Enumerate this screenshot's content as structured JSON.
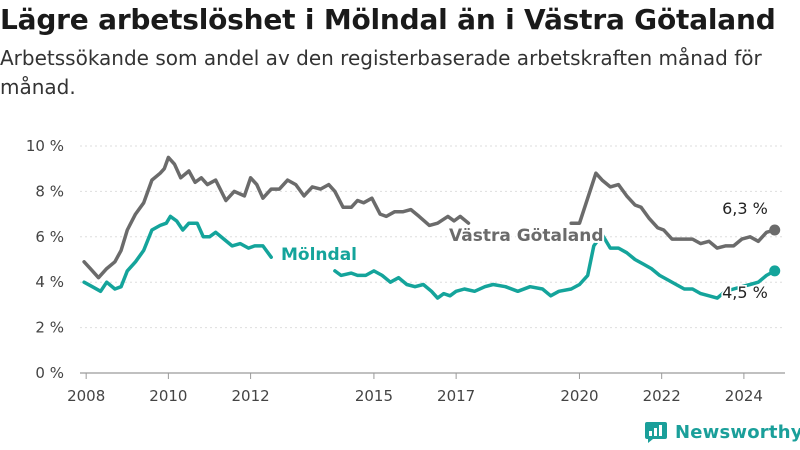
{
  "header": {
    "title": "Lägre arbetslöshet i Mölndal än i Västra Götaland",
    "subtitle": "Arbetssökande som andel av den registerbaserade arbetskraften månad för månad."
  },
  "brand": {
    "name": "Newsworthy",
    "icon": "newsworthy-logo-icon",
    "color": "#1a9f9a"
  },
  "chart_data": {
    "type": "line",
    "title": "Lägre arbetslöshet i Mölndal än i Västra Götaland",
    "subtitle": "Arbetssökande som andel av den registerbaserade arbetskraften månad för månad.",
    "xlabel": "",
    "ylabel": "",
    "ylim": [
      0,
      10
    ],
    "yticks": [
      0,
      2,
      4,
      6,
      8,
      10
    ],
    "ytick_labels": [
      "0 %",
      "2 %",
      "4 %",
      "6 %",
      "8 %",
      "10 %"
    ],
    "xlim": [
      2007.85,
      2025.0
    ],
    "xticks": [
      2008,
      2010,
      2012,
      2015,
      2017,
      2020,
      2022,
      2024
    ],
    "xtick_labels": [
      "2008",
      "2010",
      "2012",
      "2015",
      "2017",
      "2020",
      "2022",
      "2024"
    ],
    "grid": true,
    "series": [
      {
        "name": "Västra Götaland",
        "color": "#6b6b6b",
        "end_label": "6,3 %",
        "segments": [
          [
            [
              2007.95,
              4.9
            ],
            [
              2008.1,
              4.6
            ],
            [
              2008.3,
              4.2
            ],
            [
              2008.5,
              4.6
            ],
            [
              2008.7,
              4.9
            ],
            [
              2008.85,
              5.4
            ],
            [
              2009.0,
              6.3
            ],
            [
              2009.2,
              7.0
            ],
            [
              2009.4,
              7.5
            ],
            [
              2009.6,
              8.5
            ],
            [
              2009.8,
              8.8
            ],
            [
              2009.9,
              9.0
            ],
            [
              2010.0,
              9.5
            ],
            [
              2010.15,
              9.2
            ],
            [
              2010.3,
              8.6
            ],
            [
              2010.5,
              8.9
            ],
            [
              2010.65,
              8.4
            ],
            [
              2010.8,
              8.6
            ],
            [
              2010.95,
              8.3
            ],
            [
              2011.15,
              8.5
            ],
            [
              2011.4,
              7.6
            ],
            [
              2011.6,
              8.0
            ],
            [
              2011.85,
              7.8
            ],
            [
              2012.0,
              8.6
            ],
            [
              2012.15,
              8.3
            ],
            [
              2012.3,
              7.7
            ],
            [
              2012.5,
              8.1
            ],
            [
              2012.7,
              8.1
            ],
            [
              2012.9,
              8.5
            ],
            [
              2013.1,
              8.3
            ],
            [
              2013.3,
              7.8
            ],
            [
              2013.5,
              8.2
            ],
            [
              2013.7,
              8.1
            ],
            [
              2013.9,
              8.3
            ],
            [
              2014.05,
              8.0
            ],
            [
              2014.25,
              7.3
            ],
            [
              2014.45,
              7.3
            ],
            [
              2014.6,
              7.6
            ],
            [
              2014.75,
              7.5
            ],
            [
              2014.95,
              7.7
            ],
            [
              2015.15,
              7.0
            ],
            [
              2015.3,
              6.9
            ],
            [
              2015.5,
              7.1
            ],
            [
              2015.7,
              7.1
            ],
            [
              2015.9,
              7.2
            ],
            [
              2016.1,
              6.9
            ],
            [
              2016.35,
              6.5
            ],
            [
              2016.55,
              6.6
            ],
            [
              2016.8,
              6.9
            ],
            [
              2016.95,
              6.7
            ],
            [
              2017.1,
              6.9
            ],
            [
              2017.3,
              6.6
            ]
          ],
          [
            [
              2019.8,
              6.6
            ],
            [
              2020.0,
              6.6
            ],
            [
              2020.2,
              7.7
            ],
            [
              2020.4,
              8.8
            ],
            [
              2020.55,
              8.5
            ],
            [
              2020.75,
              8.2
            ],
            [
              2020.95,
              8.3
            ],
            [
              2021.15,
              7.8
            ],
            [
              2021.35,
              7.4
            ],
            [
              2021.5,
              7.3
            ],
            [
              2021.7,
              6.8
            ],
            [
              2021.9,
              6.4
            ],
            [
              2022.05,
              6.3
            ],
            [
              2022.25,
              5.9
            ],
            [
              2022.5,
              5.9
            ],
            [
              2022.75,
              5.9
            ],
            [
              2022.95,
              5.7
            ],
            [
              2023.15,
              5.8
            ],
            [
              2023.35,
              5.5
            ],
            [
              2023.55,
              5.6
            ],
            [
              2023.75,
              5.6
            ],
            [
              2023.95,
              5.9
            ],
            [
              2024.15,
              6.0
            ],
            [
              2024.35,
              5.8
            ],
            [
              2024.55,
              6.2
            ],
            [
              2024.75,
              6.3
            ]
          ]
        ]
      },
      {
        "name": "Mölndal",
        "color": "#14a49b",
        "end_label": "4,5 %",
        "segments": [
          [
            [
              2007.95,
              4.0
            ],
            [
              2008.15,
              3.8
            ],
            [
              2008.35,
              3.6
            ],
            [
              2008.5,
              4.0
            ],
            [
              2008.7,
              3.7
            ],
            [
              2008.85,
              3.8
            ],
            [
              2009.0,
              4.5
            ],
            [
              2009.2,
              4.9
            ],
            [
              2009.4,
              5.4
            ],
            [
              2009.6,
              6.3
            ],
            [
              2009.8,
              6.5
            ],
            [
              2009.95,
              6.6
            ],
            [
              2010.05,
              6.9
            ],
            [
              2010.2,
              6.7
            ],
            [
              2010.35,
              6.3
            ],
            [
              2010.5,
              6.6
            ],
            [
              2010.7,
              6.6
            ],
            [
              2010.85,
              6.0
            ],
            [
              2011.0,
              6.0
            ],
            [
              2011.15,
              6.2
            ],
            [
              2011.35,
              5.9
            ],
            [
              2011.55,
              5.6
            ],
            [
              2011.75,
              5.7
            ],
            [
              2011.95,
              5.5
            ],
            [
              2012.1,
              5.6
            ],
            [
              2012.3,
              5.6
            ],
            [
              2012.5,
              5.1
            ]
          ],
          [
            [
              2014.05,
              4.5
            ],
            [
              2014.2,
              4.3
            ],
            [
              2014.45,
              4.4
            ],
            [
              2014.6,
              4.3
            ],
            [
              2014.8,
              4.3
            ],
            [
              2015.0,
              4.5
            ],
            [
              2015.2,
              4.3
            ],
            [
              2015.4,
              4.0
            ],
            [
              2015.6,
              4.2
            ],
            [
              2015.8,
              3.9
            ],
            [
              2016.0,
              3.8
            ],
            [
              2016.2,
              3.9
            ],
            [
              2016.4,
              3.6
            ],
            [
              2016.55,
              3.3
            ],
            [
              2016.7,
              3.5
            ],
            [
              2016.85,
              3.4
            ],
            [
              2017.0,
              3.6
            ],
            [
              2017.2,
              3.7
            ],
            [
              2017.45,
              3.6
            ],
            [
              2017.7,
              3.8
            ],
            [
              2017.9,
              3.9
            ],
            [
              2018.2,
              3.8
            ],
            [
              2018.5,
              3.6
            ],
            [
              2018.8,
              3.8
            ],
            [
              2019.1,
              3.7
            ],
            [
              2019.3,
              3.4
            ],
            [
              2019.5,
              3.6
            ],
            [
              2019.8,
              3.7
            ],
            [
              2020.0,
              3.9
            ],
            [
              2020.2,
              4.3
            ],
            [
              2020.35,
              5.6
            ],
            [
              2020.55,
              6.1
            ],
            [
              2020.75,
              5.5
            ],
            [
              2020.95,
              5.5
            ],
            [
              2021.15,
              5.3
            ],
            [
              2021.35,
              5.0
            ],
            [
              2021.55,
              4.8
            ],
            [
              2021.75,
              4.6
            ],
            [
              2021.95,
              4.3
            ],
            [
              2022.15,
              4.1
            ],
            [
              2022.35,
              3.9
            ],
            [
              2022.55,
              3.7
            ],
            [
              2022.75,
              3.7
            ],
            [
              2022.95,
              3.5
            ],
            [
              2023.15,
              3.4
            ],
            [
              2023.35,
              3.3
            ],
            [
              2023.55,
              3.6
            ],
            [
              2023.75,
              3.7
            ],
            [
              2023.95,
              3.8
            ],
            [
              2024.15,
              3.9
            ],
            [
              2024.35,
              4.0
            ],
            [
              2024.55,
              4.3
            ],
            [
              2024.75,
              4.5
            ]
          ]
        ]
      }
    ]
  }
}
